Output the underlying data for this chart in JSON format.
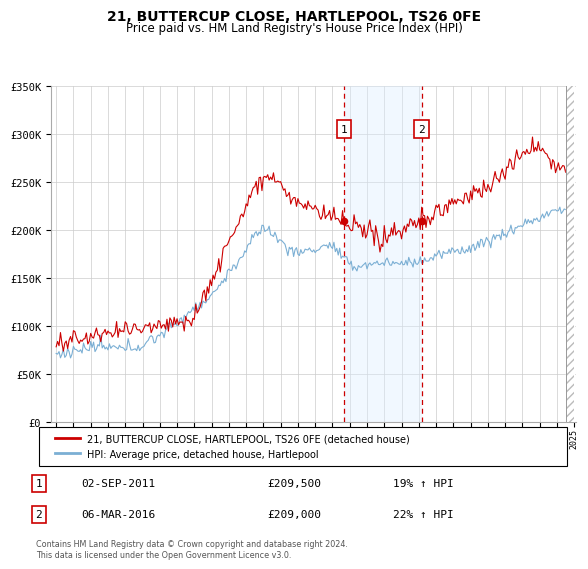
{
  "title": "21, BUTTERCUP CLOSE, HARTLEPOOL, TS26 0FE",
  "subtitle": "Price paid vs. HM Land Registry's House Price Index (HPI)",
  "x_start_year": 1995,
  "x_end_year": 2025,
  "y_min": 0,
  "y_max": 350000,
  "y_ticks": [
    0,
    50000,
    100000,
    150000,
    200000,
    250000,
    300000,
    350000
  ],
  "y_tick_labels": [
    "£0",
    "£50K",
    "£100K",
    "£150K",
    "£200K",
    "£250K",
    "£300K",
    "£350K"
  ],
  "hpi_line_color": "#7bafd4",
  "price_line_color": "#cc0000",
  "sale1_price": 209500,
  "sale1_x": 2011.67,
  "sale2_price": 209000,
  "sale2_x": 2016.17,
  "shade_color": "#ddeeff",
  "dashed_line_color": "#cc0000",
  "legend_label_red": "21, BUTTERCUP CLOSE, HARTLEPOOL, TS26 0FE (detached house)",
  "legend_label_blue": "HPI: Average price, detached house, Hartlepool",
  "table_row1": [
    "1",
    "02-SEP-2011",
    "£209,500",
    "19% ↑ HPI"
  ],
  "table_row2": [
    "2",
    "06-MAR-2016",
    "£209,000",
    "22% ↑ HPI"
  ],
  "footer": "Contains HM Land Registry data © Crown copyright and database right 2024.\nThis data is licensed under the Open Government Licence v3.0.",
  "bg_color": "#ffffff",
  "grid_color": "#cccccc"
}
